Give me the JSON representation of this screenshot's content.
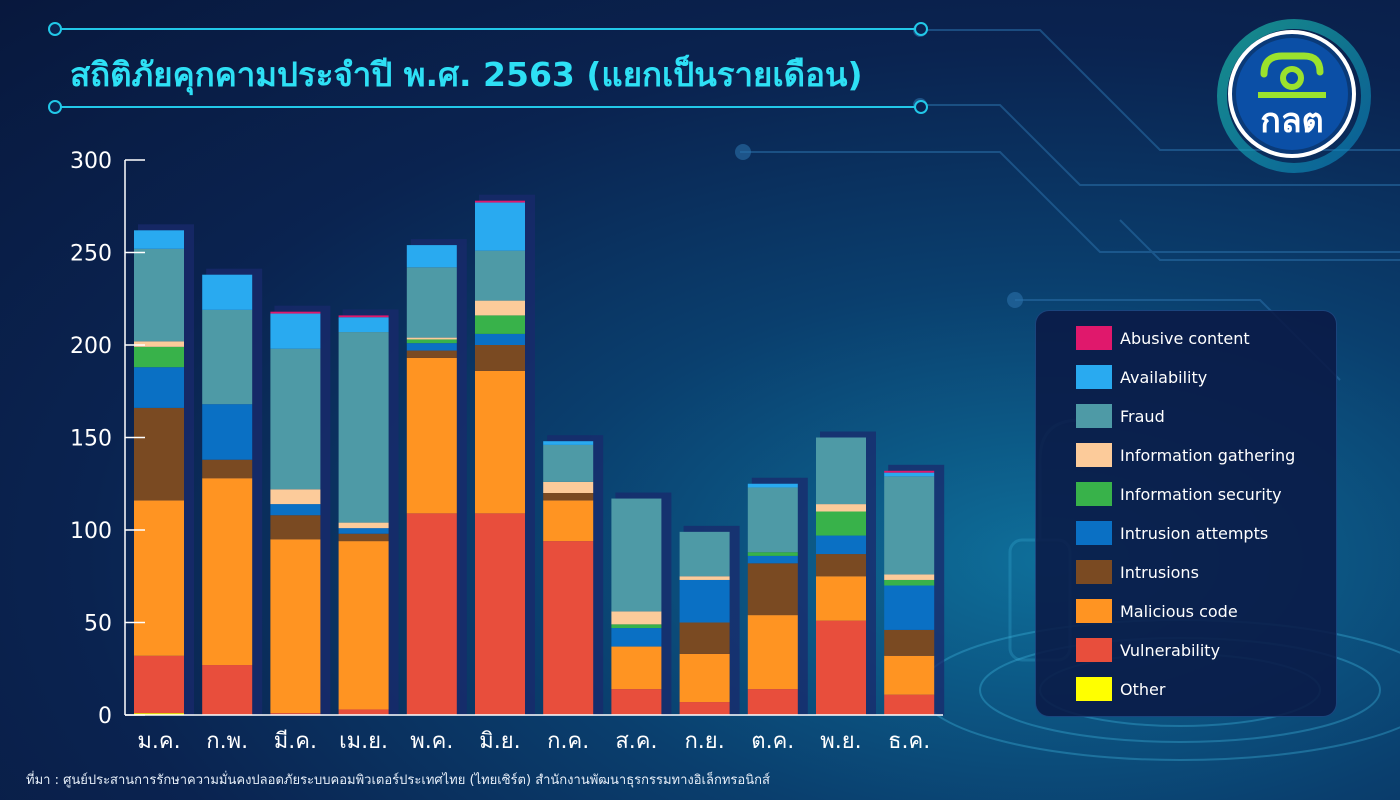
{
  "title": "สถิติภัยคุกคามประจำปี พ.ศ. 2563 (แยกเป็นรายเดือน)",
  "logo": {
    "text": "กลต"
  },
  "source": "ที่มา : ศูนย์ประสานการรักษาความมั่นคงปลอดภัยระบบคอมพิวเตอร์ประเทศไทย (ไทยเซิร์ต) สำนักงานพัฒนาธุรกรรมทางอิเล็กทรอนิกส์",
  "colors": {
    "background": "#0a2350",
    "accent": "#22c8e8",
    "axis": "#ffffff"
  },
  "chart_data": {
    "type": "bar",
    "stacked": true,
    "title": "สถิติภัยคุกคามประจำปี พ.ศ. 2563 (แยกเป็นรายเดือน)",
    "xlabel": "",
    "ylabel": "",
    "ylim": [
      0,
      300
    ],
    "yticks": [
      "0",
      "50",
      "100",
      "150",
      "200",
      "250",
      "300"
    ],
    "grid": false,
    "legend_position": "right",
    "categories": [
      "ม.ค.",
      "ก.พ.",
      "มี.ค.",
      "เม.ย.",
      "พ.ค.",
      "มิ.ย.",
      "ก.ค.",
      "ส.ค.",
      "ก.ย.",
      "ต.ค.",
      "พ.ย.",
      "ธ.ค."
    ],
    "series": [
      {
        "name": "Other",
        "color": "#ffff00",
        "values": [
          1,
          0,
          0,
          0,
          0,
          0,
          0,
          0,
          0,
          0,
          0,
          0
        ]
      },
      {
        "name": "Vulnerability",
        "color": "#e84e3c",
        "values": [
          31,
          27,
          1,
          3,
          109,
          109,
          94,
          14,
          7,
          14,
          51,
          11
        ]
      },
      {
        "name": "Malicious code",
        "color": "#ff9422",
        "values": [
          84,
          101,
          94,
          91,
          84,
          77,
          22,
          23,
          26,
          40,
          24,
          21
        ]
      },
      {
        "name": "Intrusions",
        "color": "#7a4a22",
        "values": [
          50,
          10,
          13,
          4,
          4,
          14,
          4,
          0,
          17,
          28,
          12,
          14
        ]
      },
      {
        "name": "Intrusion attempts",
        "color": "#0a70c4",
        "values": [
          22,
          30,
          6,
          3,
          4,
          6,
          0,
          10,
          23,
          4,
          10,
          24
        ]
      },
      {
        "name": "Information security",
        "color": "#38b24a",
        "values": [
          11,
          0,
          0,
          0,
          2,
          10,
          0,
          2,
          0,
          2,
          13,
          3
        ]
      },
      {
        "name": "Information gathering",
        "color": "#fccb9a",
        "values": [
          3,
          0,
          8,
          3,
          1,
          8,
          6,
          7,
          2,
          0,
          4,
          3
        ]
      },
      {
        "name": "Fraud",
        "color": "#4e9aa6",
        "values": [
          50,
          51,
          76,
          103,
          38,
          27,
          20,
          61,
          24,
          35,
          36,
          53
        ]
      },
      {
        "name": "Availability",
        "color": "#29aaf0",
        "values": [
          10,
          19,
          19,
          8,
          12,
          26,
          2,
          0,
          0,
          2,
          0,
          2
        ]
      },
      {
        "name": "Abusive content",
        "color": "#e0186c",
        "values": [
          0,
          0,
          1,
          1,
          0,
          1,
          0,
          0,
          0,
          0,
          0,
          1
        ]
      }
    ]
  },
  "legend": [
    {
      "name": "Abusive content",
      "color": "#e0186c"
    },
    {
      "name": "Availability",
      "color": "#29aaf0"
    },
    {
      "name": "Fraud",
      "color": "#4e9aa6"
    },
    {
      "name": "Information gathering",
      "color": "#fccb9a"
    },
    {
      "name": "Information security",
      "color": "#38b24a"
    },
    {
      "name": "Intrusion attempts",
      "color": "#0a70c4"
    },
    {
      "name": "Intrusions",
      "color": "#7a4a22"
    },
    {
      "name": "Malicious code",
      "color": "#ff9422"
    },
    {
      "name": "Vulnerability",
      "color": "#e84e3c"
    },
    {
      "name": "Other",
      "color": "#ffff00"
    }
  ]
}
